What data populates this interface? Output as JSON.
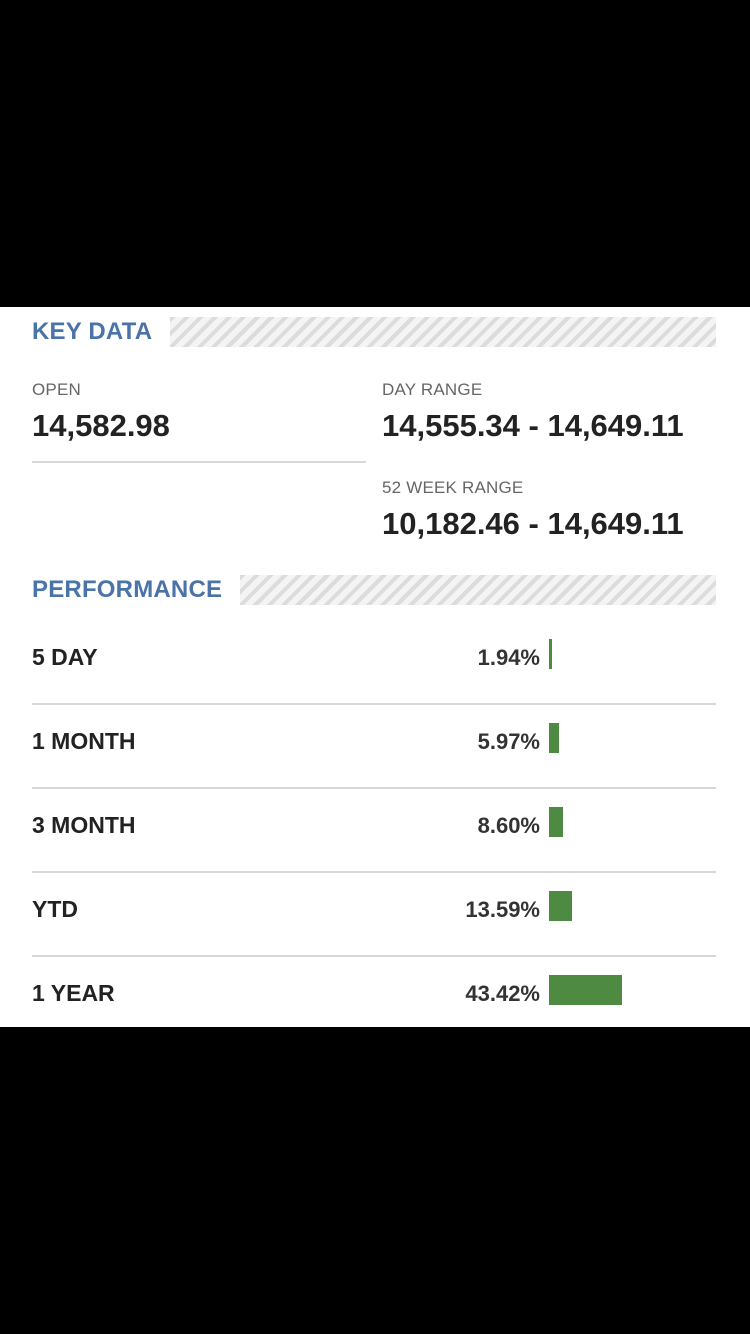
{
  "key_data": {
    "title": "KEY DATA",
    "open_label": "OPEN",
    "open_value": "14,582.98",
    "day_range_label": "DAY RANGE",
    "day_range_value": "14,555.34 - 14,649.11",
    "week52_label": "52 WEEK RANGE",
    "week52_value": "10,182.46 - 14,649.11"
  },
  "performance": {
    "title": "PERFORMANCE",
    "bar_color": "#4e8a42",
    "rows": [
      {
        "label": "5 DAY",
        "value": "1.94%",
        "pct": 1.94
      },
      {
        "label": "1 MONTH",
        "value": "5.97%",
        "pct": 5.97
      },
      {
        "label": "3 MONTH",
        "value": "8.60%",
        "pct": 8.6
      },
      {
        "label": "YTD",
        "value": "13.59%",
        "pct": 13.59
      },
      {
        "label": "1 YEAR",
        "value": "43.42%",
        "pct": 43.42
      }
    ]
  }
}
